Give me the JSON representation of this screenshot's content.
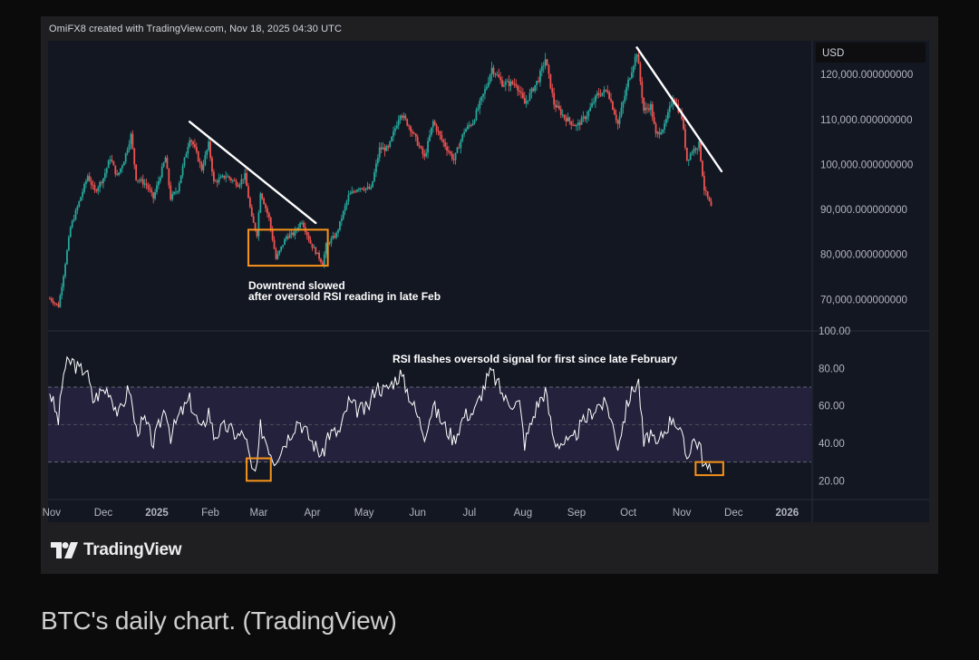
{
  "byline": "OmiFX8 created with TradingView.com, Nov 18, 2025 04:30 UTC",
  "logo_text": "TradingView",
  "caption": "BTC's daily chart. (TradingView)",
  "colors": {
    "background": "#0b0b0c",
    "card": "#1f1f21",
    "pane": "#131722",
    "up": "#26a69a",
    "down": "#ef5350",
    "rsi_line": "#ffffff",
    "rsi_band": "#7e57c2",
    "highlight_box": "#f7931a",
    "trendline": "#ffffff",
    "axis_text": "#b2b5be"
  },
  "chart_data": [
    {
      "type": "candlestick",
      "currency_label": "USD",
      "y_ticks": [
        "120,000.000000000",
        "110,000.000000000",
        "100,000.000000000",
        "90,000.000000000",
        "80,000.000000000",
        "70,000.000000000"
      ],
      "ylim": [
        63000,
        127500
      ],
      "x_tick_labels": [
        "Nov",
        "Dec",
        "2025",
        "Feb",
        "Mar",
        "Apr",
        "May",
        "Jun",
        "Jul",
        "Aug",
        "Sep",
        "Oct",
        "Nov",
        "Dec",
        "2026"
      ],
      "x_tick_dates": [
        "2024-11-01",
        "2024-12-01",
        "2025-01-01",
        "2025-02-01",
        "2025-03-01",
        "2025-04-01",
        "2025-05-01",
        "2025-06-01",
        "2025-07-01",
        "2025-08-01",
        "2025-09-01",
        "2025-10-01",
        "2025-11-01",
        "2025-12-01",
        "2026-01-01"
      ],
      "xlim": [
        "2024-10-30",
        "2026-01-15"
      ],
      "close_series_approx": [
        [
          "2024-10-31",
          70200
        ],
        [
          "2024-11-05",
          68500
        ],
        [
          "2024-11-08",
          75500
        ],
        [
          "2024-11-12",
          86000
        ],
        [
          "2024-11-16",
          90500
        ],
        [
          "2024-11-22",
          97500
        ],
        [
          "2024-11-26",
          94000
        ],
        [
          "2024-12-01",
          97000
        ],
        [
          "2024-12-05",
          101500
        ],
        [
          "2024-12-09",
          97300
        ],
        [
          "2024-12-13",
          101000
        ],
        [
          "2024-12-17",
          106500
        ],
        [
          "2024-12-20",
          97000
        ],
        [
          "2024-12-26",
          95500
        ],
        [
          "2024-12-30",
          92500
        ],
        [
          "2025-01-06",
          101500
        ],
        [
          "2025-01-09",
          92500
        ],
        [
          "2025-01-13",
          94500
        ],
        [
          "2025-01-20",
          106000
        ],
        [
          "2025-01-22",
          104500
        ],
        [
          "2025-01-27",
          99000
        ],
        [
          "2025-01-31",
          104500
        ],
        [
          "2025-02-03",
          96000
        ],
        [
          "2025-02-10",
          97500
        ],
        [
          "2025-02-17",
          95600
        ],
        [
          "2025-02-21",
          97500
        ],
        [
          "2025-02-25",
          88000
        ],
        [
          "2025-02-28",
          84500
        ],
        [
          "2025-03-02",
          94000
        ],
        [
          "2025-03-07",
          88000
        ],
        [
          "2025-03-11",
          79000
        ],
        [
          "2025-03-17",
          84000
        ],
        [
          "2025-03-21",
          84500
        ],
        [
          "2025-03-26",
          87500
        ],
        [
          "2025-03-31",
          82500
        ],
        [
          "2025-04-07",
          78000
        ],
        [
          "2025-04-09",
          82000
        ],
        [
          "2025-04-15",
          84500
        ],
        [
          "2025-04-22",
          93000
        ],
        [
          "2025-04-28",
          95000
        ],
        [
          "2025-05-05",
          94500
        ],
        [
          "2025-05-10",
          103500
        ],
        [
          "2025-05-15",
          103500
        ],
        [
          "2025-05-22",
          111500
        ],
        [
          "2025-05-28",
          108000
        ],
        [
          "2025-06-05",
          101500
        ],
        [
          "2025-06-10",
          109500
        ],
        [
          "2025-06-15",
          105500
        ],
        [
          "2025-06-22",
          101000
        ],
        [
          "2025-06-28",
          107500
        ],
        [
          "2025-07-03",
          109500
        ],
        [
          "2025-07-11",
          117500
        ],
        [
          "2025-07-14",
          121500
        ],
        [
          "2025-07-20",
          118000
        ],
        [
          "2025-07-28",
          118000
        ],
        [
          "2025-08-02",
          113500
        ],
        [
          "2025-08-10",
          119000
        ],
        [
          "2025-08-14",
          123500
        ],
        [
          "2025-08-19",
          113500
        ],
        [
          "2025-08-25",
          110500
        ],
        [
          "2025-09-01",
          108500
        ],
        [
          "2025-09-07",
          111000
        ],
        [
          "2025-09-13",
          115500
        ],
        [
          "2025-09-19",
          116500
        ],
        [
          "2025-09-25",
          109000
        ],
        [
          "2025-10-01",
          118500
        ],
        [
          "2025-10-06",
          125000
        ],
        [
          "2025-10-10",
          112000
        ],
        [
          "2025-10-14",
          113000
        ],
        [
          "2025-10-17",
          106500
        ],
        [
          "2025-10-22",
          108500
        ],
        [
          "2025-10-27",
          115000
        ],
        [
          "2025-11-01",
          110500
        ],
        [
          "2025-11-04",
          101000
        ],
        [
          "2025-11-07",
          103000
        ],
        [
          "2025-11-11",
          104500
        ],
        [
          "2025-11-14",
          94500
        ],
        [
          "2025-11-17",
          91500
        ],
        [
          "2025-11-18",
          90500
        ]
      ],
      "trendlines": [
        {
          "from": [
            "2025-01-20",
            109500
          ],
          "to": [
            "2025-04-03",
            87000
          ]
        },
        {
          "from": [
            "2025-10-06",
            126000
          ],
          "to": [
            "2025-11-24",
            98500
          ]
        }
      ],
      "highlight_box": {
        "from": [
          "2025-02-23",
          85500
        ],
        "to": [
          "2025-04-10",
          77500
        ]
      },
      "annotation": "Downtrend slowed\nafter oversold RSI reading in late Feb"
    },
    {
      "type": "line",
      "indicator": "RSI",
      "y_ticks": [
        "100.00",
        "80.00",
        "60.00",
        "40.00",
        "20.00"
      ],
      "ylim": [
        10,
        100
      ],
      "band": [
        30,
        70
      ],
      "midline": 50,
      "rsi_series_approx": [
        [
          "2024-10-31",
          68
        ],
        [
          "2024-11-03",
          58
        ],
        [
          "2024-11-05",
          52
        ],
        [
          "2024-11-08",
          78
        ],
        [
          "2024-11-10",
          82
        ],
        [
          "2024-11-13",
          84
        ],
        [
          "2024-11-17",
          79
        ],
        [
          "2024-11-21",
          80
        ],
        [
          "2024-11-25",
          63
        ],
        [
          "2024-11-30",
          68
        ],
        [
          "2024-12-04",
          69
        ],
        [
          "2024-12-10",
          55
        ],
        [
          "2024-12-16",
          70
        ],
        [
          "2024-12-20",
          47
        ],
        [
          "2024-12-25",
          52
        ],
        [
          "2024-12-30",
          40
        ],
        [
          "2025-01-06",
          60
        ],
        [
          "2025-01-09",
          44
        ],
        [
          "2025-01-14",
          55
        ],
        [
          "2025-01-20",
          63
        ],
        [
          "2025-01-27",
          46
        ],
        [
          "2025-01-31",
          58
        ],
        [
          "2025-02-03",
          44
        ],
        [
          "2025-02-10",
          49
        ],
        [
          "2025-02-17",
          44
        ],
        [
          "2025-02-21",
          45
        ],
        [
          "2025-02-25",
          25
        ],
        [
          "2025-02-28",
          25
        ],
        [
          "2025-03-02",
          49
        ],
        [
          "2025-03-06",
          40
        ],
        [
          "2025-03-10",
          31
        ],
        [
          "2025-03-17",
          42
        ],
        [
          "2025-03-24",
          53
        ],
        [
          "2025-03-31",
          42
        ],
        [
          "2025-04-07",
          33
        ],
        [
          "2025-04-10",
          45
        ],
        [
          "2025-04-17",
          46
        ],
        [
          "2025-04-22",
          62
        ],
        [
          "2025-04-27",
          58
        ],
        [
          "2025-05-03",
          58
        ],
        [
          "2025-05-08",
          71
        ],
        [
          "2025-05-13",
          68
        ],
        [
          "2025-05-22",
          77
        ],
        [
          "2025-05-28",
          64
        ],
        [
          "2025-06-05",
          45
        ],
        [
          "2025-06-10",
          60
        ],
        [
          "2025-06-16",
          50
        ],
        [
          "2025-06-22",
          42
        ],
        [
          "2025-06-28",
          55
        ],
        [
          "2025-07-04",
          57
        ],
        [
          "2025-07-11",
          74
        ],
        [
          "2025-07-14",
          78
        ],
        [
          "2025-07-22",
          63
        ],
        [
          "2025-07-30",
          61
        ],
        [
          "2025-08-02",
          40
        ],
        [
          "2025-08-09",
          60
        ],
        [
          "2025-08-14",
          68
        ],
        [
          "2025-08-19",
          41
        ],
        [
          "2025-08-29",
          40
        ],
        [
          "2025-09-02",
          47
        ],
        [
          "2025-09-08",
          55
        ],
        [
          "2025-09-14",
          61
        ],
        [
          "2025-09-19",
          60
        ],
        [
          "2025-09-25",
          39
        ],
        [
          "2025-10-01",
          63
        ],
        [
          "2025-10-05",
          71
        ],
        [
          "2025-10-07",
          73
        ],
        [
          "2025-10-10",
          39
        ],
        [
          "2025-10-14",
          46
        ],
        [
          "2025-10-17",
          37
        ],
        [
          "2025-10-21",
          45
        ],
        [
          "2025-10-27",
          55
        ],
        [
          "2025-11-01",
          43
        ],
        [
          "2025-11-04",
          32
        ],
        [
          "2025-11-07",
          42
        ],
        [
          "2025-11-11",
          40
        ],
        [
          "2025-11-14",
          28
        ],
        [
          "2025-11-17",
          25
        ],
        [
          "2025-11-18",
          24
        ]
      ],
      "highlight_boxes": [
        {
          "from": [
            "2025-02-22",
            32
          ],
          "to": [
            "2025-03-08",
            20
          ]
        },
        {
          "from": [
            "2025-11-09",
            30
          ],
          "to": [
            "2025-11-25",
            23
          ]
        }
      ],
      "annotation": "RSI flashes oversold signal for first since late February"
    }
  ]
}
